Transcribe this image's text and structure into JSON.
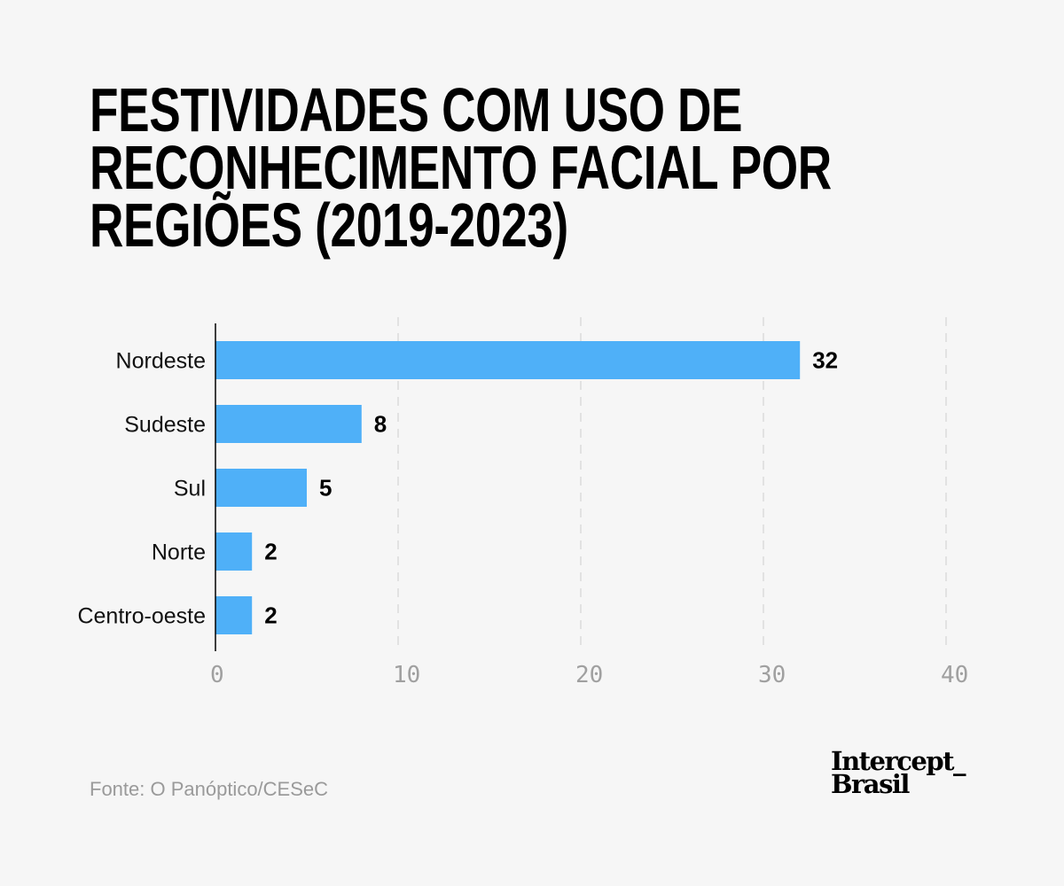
{
  "chart_data": {
    "type": "bar",
    "orientation": "horizontal",
    "title_lines": [
      "FESTIVIDADES COM USO DE",
      "RECONHECIMENTO FACIAL POR",
      "REGIÕES (2019-2023)"
    ],
    "categories": [
      "Nordeste",
      "Sudeste",
      "Sul",
      "Norte",
      "Centro-oeste"
    ],
    "values": [
      32,
      8,
      5,
      2,
      2
    ],
    "xlim": [
      0,
      40
    ],
    "xticks": [
      0,
      10,
      20,
      30,
      40
    ],
    "grid": true,
    "bar_color": "#4fb0f8",
    "data_labels": [
      "32",
      "8",
      "5",
      "2",
      "2"
    ]
  },
  "source": "Fonte: O Panóptico/CESeC",
  "logo": {
    "line1": "Intercept_",
    "line2": "Brasil"
  }
}
